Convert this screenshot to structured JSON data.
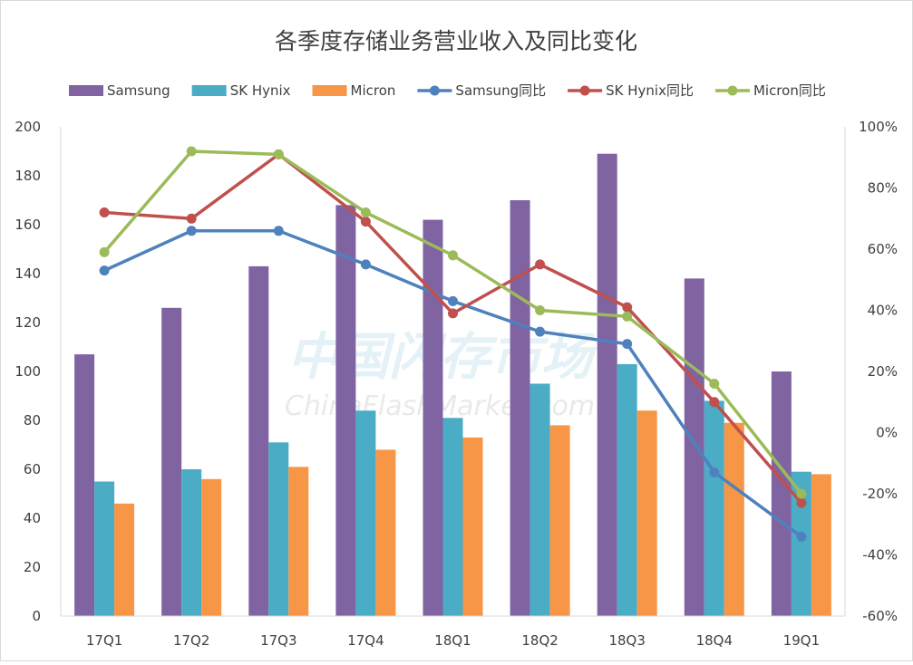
{
  "chart_data": {
    "type": "bar",
    "title": "各季度存储业务营业收入及同比变化",
    "categories": [
      "17Q1",
      "17Q2",
      "17Q3",
      "17Q4",
      "18Q1",
      "18Q2",
      "18Q3",
      "18Q4",
      "19Q1"
    ],
    "y_left": {
      "min": 0,
      "max": 200,
      "step": 20,
      "ticks": [
        "0",
        "20",
        "40",
        "60",
        "80",
        "100",
        "120",
        "140",
        "160",
        "180",
        "200"
      ]
    },
    "y_right": {
      "min": -60,
      "max": 100,
      "step": 20,
      "ticks": [
        "-60%",
        "-40%",
        "-20%",
        "0%",
        "20%",
        "40%",
        "60%",
        "80%",
        "100%"
      ]
    },
    "grid": false,
    "legend_position": "top",
    "bar_series": [
      {
        "name": "Samsung",
        "color": "#8064a2",
        "values": [
          107,
          126,
          143,
          168,
          162,
          170,
          189,
          138,
          100
        ]
      },
      {
        "name": "SK Hynix",
        "color": "#4bacc6",
        "values": [
          55,
          60,
          71,
          84,
          81,
          95,
          103,
          88,
          59
        ]
      },
      {
        "name": "Micron",
        "color": "#f79646",
        "values": [
          46,
          56,
          61,
          68,
          73,
          78,
          84,
          79,
          58
        ]
      }
    ],
    "line_series": [
      {
        "name": "Samsung同比",
        "color": "#4f81bd",
        "axis": "right",
        "values": [
          53,
          66,
          66,
          55,
          43,
          33,
          29,
          -13,
          -34
        ]
      },
      {
        "name": "SK Hynix同比",
        "color": "#c0504d",
        "axis": "right",
        "values": [
          72,
          70,
          91,
          69,
          39,
          55,
          41,
          10,
          -23
        ]
      },
      {
        "name": "Micron同比",
        "color": "#9bbb59",
        "axis": "right",
        "values": [
          59,
          92,
          91,
          72,
          58,
          40,
          38,
          16,
          -20
        ]
      }
    ]
  },
  "watermark": {
    "line1": "中国闪存市场",
    "line2": "ChinaFlashMarket.com"
  }
}
